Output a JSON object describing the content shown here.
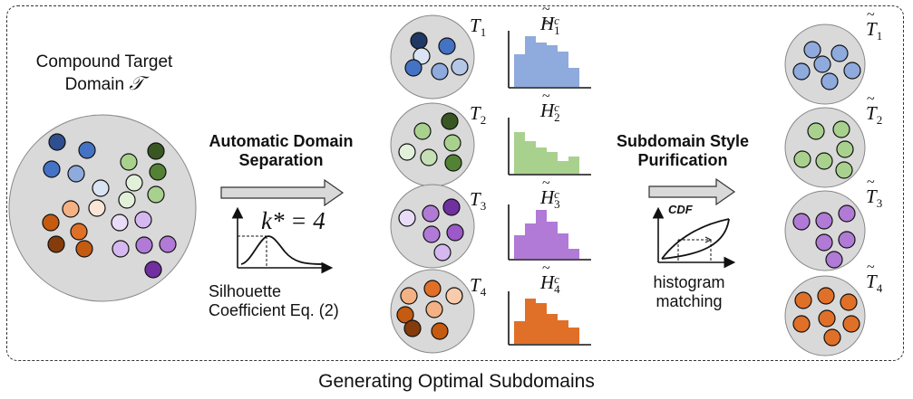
{
  "caption": "Generating Optimal Subdomains",
  "compound": {
    "label_line1": "Compound Target",
    "label_line2": "Domain",
    "symbol": "𝒯"
  },
  "separation": {
    "title_line1": "Automatic Domain",
    "title_line2": "Separation",
    "k_label": "k* = 4",
    "silhouette_line1": "Silhouette",
    "silhouette_line2": "Coefficient Eq. (2)"
  },
  "purification": {
    "title_line1": "Subdomain Style",
    "title_line2": "Purification",
    "cdf_label": "CDF",
    "matching_line1": "histogram",
    "matching_line2": "matching"
  },
  "subdomains": [
    {
      "label": "T",
      "sub": "1",
      "hist_label": "H",
      "hist_sup": "c",
      "hist_sub": "1",
      "out_label": "T",
      "out_sub": "1"
    },
    {
      "label": "T",
      "sub": "2",
      "hist_label": "H",
      "hist_sup": "c",
      "hist_sub": "2",
      "out_label": "T",
      "out_sub": "2"
    },
    {
      "label": "T",
      "sub": "3",
      "hist_label": "H",
      "hist_sup": "c",
      "hist_sub": "3",
      "out_label": "T",
      "out_sub": "3"
    },
    {
      "label": "T",
      "sub": "4",
      "hist_label": "H",
      "hist_sup": "c",
      "hist_sub": "4",
      "out_label": "T",
      "out_sub": "4"
    }
  ],
  "colors": {
    "blue": "#8faadc",
    "green": "#a9d18e",
    "purple": "#b07ad6",
    "orange": "#e07028",
    "gray_disc": "#d9d9d9",
    "arrow": "#d9d9d9"
  }
}
